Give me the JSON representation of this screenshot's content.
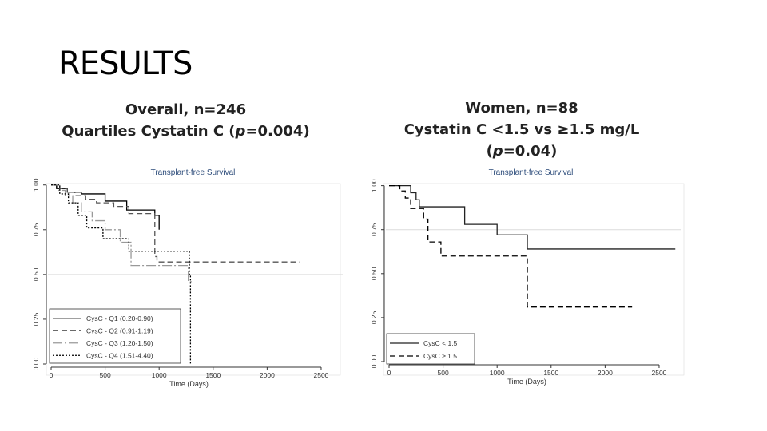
{
  "slide": {
    "title": "RESULTS"
  },
  "panels": [
    {
      "heading_line1": "Overall, n=246",
      "heading_line2_parts": [
        "Quartiles Cystatin C (",
        "p",
        "=0.004)"
      ]
    },
    {
      "heading_line1": "Women, n=88",
      "heading_line2_parts": [
        "Cystatin C <1.5 vs ≥1.5 mg/L (",
        "p",
        "=0.04)"
      ]
    }
  ],
  "chart_data": [
    {
      "type": "line",
      "title": "Transplant-free Survival",
      "xlabel": "Time (Days)",
      "ylabel": "",
      "xlim": [
        0,
        2700
      ],
      "ylim": [
        0,
        1.03
      ],
      "xticks": [
        0,
        500,
        1000,
        1500,
        2000,
        2500
      ],
      "yticks": [
        0.0,
        0.25,
        0.5,
        0.75,
        1.0
      ],
      "ytick_labels": [
        "0.00",
        "0.25",
        "0.50",
        "0.75",
        "1.00"
      ],
      "xtick_labels": [
        "0",
        "500",
        "1000",
        "1500",
        "2000",
        "2500"
      ],
      "ref_line_y": 0.5,
      "legend_position": "bottom-left",
      "series": [
        {
          "name": "CysC - Q1 (0.20-0.90)",
          "color": "#000000",
          "dash": "",
          "x": [
            0,
            50,
            150,
            280,
            500,
            700,
            960,
            1000
          ],
          "y": [
            1.0,
            0.98,
            0.96,
            0.95,
            0.91,
            0.86,
            0.83,
            0.75
          ]
        },
        {
          "name": "CysC - Q2 (0.91-1.19)",
          "color": "#555555",
          "dash": "7,4",
          "x": [
            0,
            80,
            150,
            220,
            320,
            420,
            580,
            720,
            960,
            980,
            1000,
            2300
          ],
          "y": [
            1.0,
            0.98,
            0.96,
            0.94,
            0.92,
            0.9,
            0.88,
            0.84,
            0.6,
            0.57,
            0.57,
            0.57
          ]
        },
        {
          "name": "CysC - Q3 (1.20-1.50)",
          "color": "#999999",
          "dash": "12,3,2,3",
          "x": [
            0,
            60,
            130,
            200,
            280,
            380,
            500,
            640,
            740,
            1270,
            1300
          ],
          "y": [
            1.0,
            0.97,
            0.94,
            0.9,
            0.85,
            0.8,
            0.75,
            0.68,
            0.55,
            0.46,
            0.46
          ]
        },
        {
          "name": "CysC - Q4 (1.51-4.40)",
          "color": "#000000",
          "dash": "2,2",
          "x": [
            0,
            80,
            160,
            250,
            330,
            480,
            720,
            1280,
            1290
          ],
          "y": [
            1.0,
            0.95,
            0.9,
            0.83,
            0.76,
            0.7,
            0.63,
            0.5,
            0.0
          ]
        }
      ]
    },
    {
      "type": "line",
      "title": "Transplant-free Survival",
      "xlabel": "Time (Days)",
      "ylabel": "",
      "xlim": [
        0,
        2700
      ],
      "ylim": [
        0,
        1.03
      ],
      "xticks": [
        0,
        500,
        1000,
        1500,
        2000,
        2500
      ],
      "yticks": [
        0.0,
        0.25,
        0.5,
        0.75,
        1.0
      ],
      "ytick_labels": [
        "0.00",
        "0.25",
        "0.50",
        "0.75",
        "1.00"
      ],
      "xtick_labels": [
        "0",
        "500",
        "1000",
        "1500",
        "2000",
        "2500"
      ],
      "ref_line_y": 0.75,
      "legend_position": "bottom-left",
      "series": [
        {
          "name": "CysC < 1.5",
          "color": "#222222",
          "dash": "",
          "x": [
            0,
            200,
            250,
            280,
            700,
            1000,
            1280,
            2650
          ],
          "y": [
            1.0,
            0.96,
            0.92,
            0.88,
            0.78,
            0.72,
            0.64,
            0.64
          ]
        },
        {
          "name": "CysC ≥ 1.5",
          "color": "#000000",
          "dash": "7,4",
          "x": [
            0,
            100,
            150,
            200,
            320,
            360,
            480,
            1280,
            2250
          ],
          "y": [
            1.0,
            0.97,
            0.93,
            0.87,
            0.81,
            0.68,
            0.6,
            0.31,
            0.31
          ]
        }
      ]
    }
  ]
}
